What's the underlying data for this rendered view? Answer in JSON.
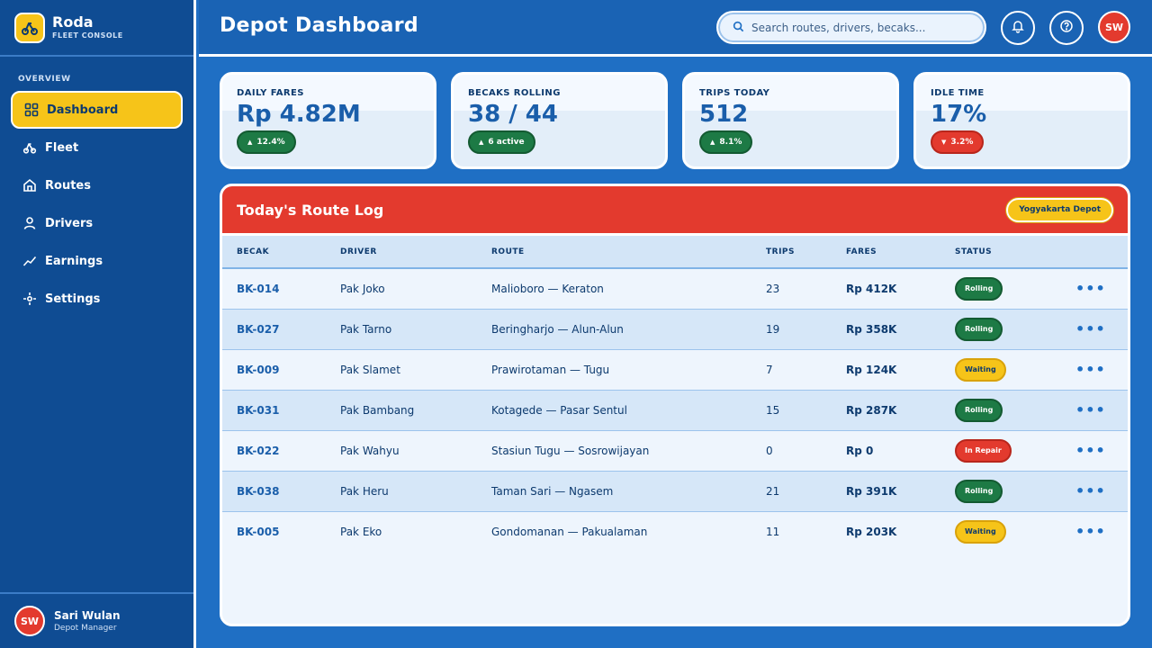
{
  "brand": {
    "name": "Roda",
    "subtitle": "FLEET CONSOLE"
  },
  "sidebar": {
    "section_label": "OVERVIEW",
    "items": [
      {
        "label": "Dashboard",
        "icon": "grid-icon",
        "active": true
      },
      {
        "label": "Fleet",
        "icon": "becak-icon"
      },
      {
        "label": "Routes",
        "icon": "home-icon"
      },
      {
        "label": "Drivers",
        "icon": "user-icon"
      },
      {
        "label": "Earnings",
        "icon": "trend-icon"
      },
      {
        "label": "Settings",
        "icon": "settings-icon"
      }
    ],
    "user": {
      "initials": "SW",
      "name": "Sari Wulan",
      "role": "Depot Manager"
    }
  },
  "header": {
    "title": "Depot Dashboard",
    "search_placeholder": "Search routes, drivers, becaks...",
    "avatar_initials": "SW"
  },
  "stats": [
    {
      "label": "DAILY FARES",
      "value": "Rp 4.82M",
      "delta": "12.4%",
      "direction": "up",
      "color": "green"
    },
    {
      "label": "BECAKS ROLLING",
      "value": "38 / 44",
      "delta": "6 active",
      "direction": "up",
      "color": "green"
    },
    {
      "label": "TRIPS TODAY",
      "value": "512",
      "delta": "8.1%",
      "direction": "up",
      "color": "green"
    },
    {
      "label": "IDLE TIME",
      "value": "17%",
      "delta": "3.2%",
      "direction": "down",
      "color": "red"
    }
  ],
  "route_log": {
    "title": "Today's Route Log",
    "depot": "Yogyakarta Depot",
    "columns": [
      "BECAK",
      "DRIVER",
      "ROUTE",
      "TRIPS",
      "FARES",
      "STATUS"
    ],
    "rows": [
      {
        "becak": "BK-014",
        "driver": "Pak Joko",
        "route": "Malioboro — Keraton",
        "trips": "23",
        "fares": "Rp 412K",
        "status": "Rolling"
      },
      {
        "becak": "BK-027",
        "driver": "Pak Tarno",
        "route": "Beringharjo — Alun-Alun",
        "trips": "19",
        "fares": "Rp 358K",
        "status": "Rolling"
      },
      {
        "becak": "BK-009",
        "driver": "Pak Slamet",
        "route": "Prawirotaman — Tugu",
        "trips": "7",
        "fares": "Rp 124K",
        "status": "Waiting"
      },
      {
        "becak": "BK-031",
        "driver": "Pak Bambang",
        "route": "Kotagede — Pasar Sentul",
        "trips": "15",
        "fares": "Rp 287K",
        "status": "Rolling"
      },
      {
        "becak": "BK-022",
        "driver": "Pak Wahyu",
        "route": "Stasiun Tugu — Sosrowijayan",
        "trips": "0",
        "fares": "Rp 0",
        "status": "In Repair"
      },
      {
        "becak": "BK-038",
        "driver": "Pak Heru",
        "route": "Taman Sari — Ngasem",
        "trips": "21",
        "fares": "Rp 391K",
        "status": "Rolling"
      },
      {
        "becak": "BK-005",
        "driver": "Pak Eko",
        "route": "Gondomanan — Pakualaman",
        "trips": "11",
        "fares": "Rp 203K",
        "status": "Waiting"
      }
    ]
  },
  "colors": {
    "primary": "#1f6fc4",
    "sidebar": "#0f4c93",
    "accent": "#f6c419",
    "danger": "#e33a2e",
    "success": "#1d7a45"
  }
}
